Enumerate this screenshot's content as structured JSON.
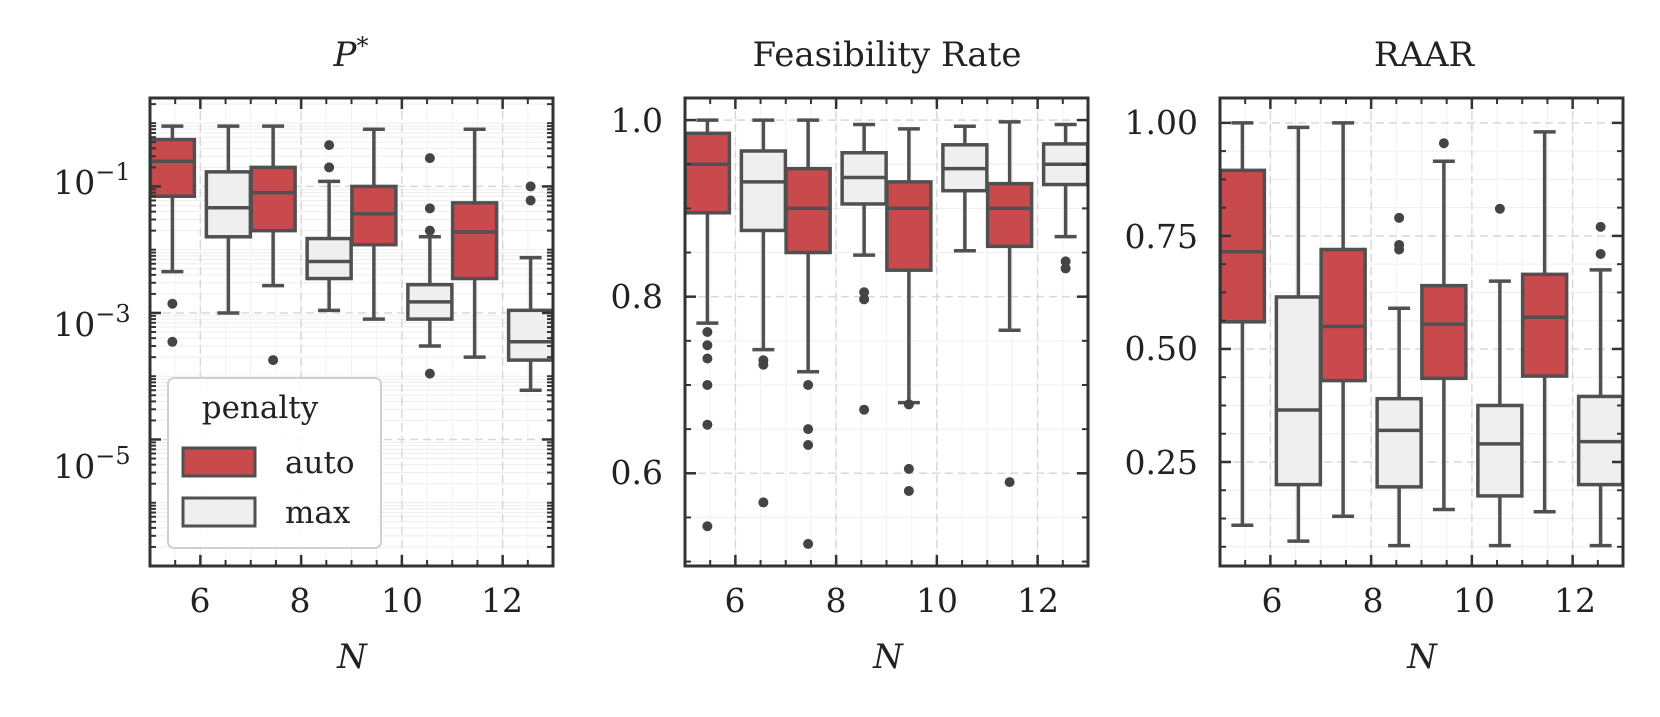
{
  "figure": {
    "legend": {
      "title": "penalty",
      "entries": [
        "auto",
        "max"
      ],
      "placement": "lower-left of first panel"
    },
    "colors": {
      "auto": "#c94a4d",
      "max": "#f0eff0",
      "edge": "#505050",
      "axis": "#333333",
      "grid": "#d8d8d8"
    }
  },
  "chart_data": [
    {
      "type": "box",
      "title": "P*",
      "title_main": "P",
      "title_sup": "*",
      "xlabel": "N",
      "ylabel": "",
      "yscale": "log",
      "ylim": [
        1e-07,
        2.5
      ],
      "yticks": [
        0.1,
        0.001,
        1e-05
      ],
      "ytick_labels": [
        {
          "base": "10",
          "exp": "−1"
        },
        {
          "base": "10",
          "exp": "−3"
        },
        {
          "base": "10",
          "exp": "−5"
        }
      ],
      "categories": [
        "6",
        "8",
        "10",
        "12"
      ],
      "series": [
        {
          "name": "auto",
          "boxes": [
            {
              "whislo": 0.0045,
              "q1": 0.07,
              "med": 0.25,
              "q3": 0.55,
              "whishi": 0.9,
              "fliers": [
                0.0014,
                0.00035
              ]
            },
            {
              "whislo": 0.0027,
              "q1": 0.02,
              "med": 0.08,
              "q3": 0.2,
              "whishi": 0.9,
              "fliers": [
                0.00018
              ]
            },
            {
              "whislo": 0.0008,
              "q1": 0.012,
              "med": 0.037,
              "q3": 0.1,
              "whishi": 0.8,
              "fliers": []
            },
            {
              "whislo": 0.0002,
              "q1": 0.0035,
              "med": 0.019,
              "q3": 0.055,
              "whishi": 0.8,
              "fliers": []
            }
          ]
        },
        {
          "name": "max",
          "boxes": [
            {
              "whislo": 0.001,
              "q1": 0.016,
              "med": 0.046,
              "q3": 0.17,
              "whishi": 0.9,
              "fliers": []
            },
            {
              "whislo": 0.0011,
              "q1": 0.0035,
              "med": 0.0065,
              "q3": 0.015,
              "whishi": 0.12,
              "fliers": [
                0.2,
                0.45
              ]
            },
            {
              "whislo": 0.0003,
              "q1": 0.0008,
              "med": 0.0015,
              "q3": 0.0028,
              "whishi": 0.016,
              "fliers": [
                0.00011,
                0.02,
                0.045,
                0.28
              ]
            },
            {
              "whislo": 6e-05,
              "q1": 0.00018,
              "med": 0.00035,
              "q3": 0.0011,
              "whishi": 0.0075,
              "fliers": [
                0.06,
                0.1
              ]
            }
          ]
        }
      ]
    },
    {
      "type": "box",
      "title": "Feasibility Rate",
      "xlabel": "N",
      "ylabel": "",
      "yscale": "linear",
      "ylim": [
        0.495,
        1.025
      ],
      "yticks": [
        1.0,
        0.8,
        0.6
      ],
      "ytick_labels": [
        "1.0",
        "0.8",
        "0.6"
      ],
      "categories": [
        "6",
        "8",
        "10",
        "12"
      ],
      "series": [
        {
          "name": "auto",
          "boxes": [
            {
              "whislo": 0.77,
              "q1": 0.895,
              "med": 0.95,
              "q3": 0.985,
              "whishi": 1.0,
              "fliers": [
                0.76,
                0.745,
                0.73,
                0.7,
                0.655,
                0.54
              ]
            },
            {
              "whislo": 0.715,
              "q1": 0.85,
              "med": 0.9,
              "q3": 0.945,
              "whishi": 1.0,
              "fliers": [
                0.7,
                0.65,
                0.632,
                0.52
              ]
            },
            {
              "whislo": 0.68,
              "q1": 0.83,
              "med": 0.9,
              "q3": 0.93,
              "whishi": 0.99,
              "fliers": [
                0.678,
                0.605,
                0.58
              ]
            },
            {
              "whislo": 0.762,
              "q1": 0.857,
              "med": 0.9,
              "q3": 0.928,
              "whishi": 0.998,
              "fliers": [
                0.59
              ]
            }
          ]
        },
        {
          "name": "max",
          "boxes": [
            {
              "whislo": 0.74,
              "q1": 0.875,
              "med": 0.93,
              "q3": 0.965,
              "whishi": 1.0,
              "fliers": [
                0.728,
                0.723,
                0.567
              ]
            },
            {
              "whislo": 0.847,
              "q1": 0.905,
              "med": 0.935,
              "q3": 0.963,
              "whishi": 0.995,
              "fliers": [
                0.805,
                0.797,
                0.672
              ]
            },
            {
              "whislo": 0.852,
              "q1": 0.92,
              "med": 0.945,
              "q3": 0.972,
              "whishi": 0.993,
              "fliers": []
            },
            {
              "whislo": 0.868,
              "q1": 0.927,
              "med": 0.95,
              "q3": 0.973,
              "whishi": 0.995,
              "fliers": [
                0.84,
                0.832
              ]
            }
          ]
        }
      ]
    },
    {
      "type": "box",
      "title": "RAAR",
      "xlabel": "N",
      "ylabel": "",
      "yscale": "linear",
      "ylim": [
        0.02,
        1.055
      ],
      "yticks": [
        1.0,
        0.75,
        0.5,
        0.25
      ],
      "ytick_labels": [
        "1.00",
        "0.75",
        "0.50",
        "0.25"
      ],
      "categories": [
        "6",
        "8",
        "10",
        "12"
      ],
      "series": [
        {
          "name": "auto",
          "boxes": [
            {
              "whislo": 0.11,
              "q1": 0.56,
              "med": 0.715,
              "q3": 0.895,
              "whishi": 1.0,
              "fliers": []
            },
            {
              "whislo": 0.13,
              "q1": 0.43,
              "med": 0.55,
              "q3": 0.72,
              "whishi": 1.0,
              "fliers": []
            },
            {
              "whislo": 0.145,
              "q1": 0.435,
              "med": 0.555,
              "q3": 0.64,
              "whishi": 0.915,
              "fliers": [
                0.955
              ]
            },
            {
              "whislo": 0.14,
              "q1": 0.44,
              "med": 0.57,
              "q3": 0.665,
              "whishi": 0.98,
              "fliers": []
            }
          ]
        },
        {
          "name": "max",
          "boxes": [
            {
              "whislo": 0.075,
              "q1": 0.2,
              "med": 0.365,
              "q3": 0.615,
              "whishi": 0.99,
              "fliers": []
            },
            {
              "whislo": 0.065,
              "q1": 0.195,
              "med": 0.32,
              "q3": 0.39,
              "whishi": 0.59,
              "fliers": [
                0.72,
                0.73,
                0.79
              ]
            },
            {
              "whislo": 0.065,
              "q1": 0.175,
              "med": 0.29,
              "q3": 0.375,
              "whishi": 0.65,
              "fliers": [
                0.81
              ]
            },
            {
              "whislo": 0.065,
              "q1": 0.2,
              "med": 0.295,
              "q3": 0.395,
              "whishi": 0.675,
              "fliers": [
                0.71,
                0.77
              ]
            }
          ]
        }
      ]
    }
  ]
}
